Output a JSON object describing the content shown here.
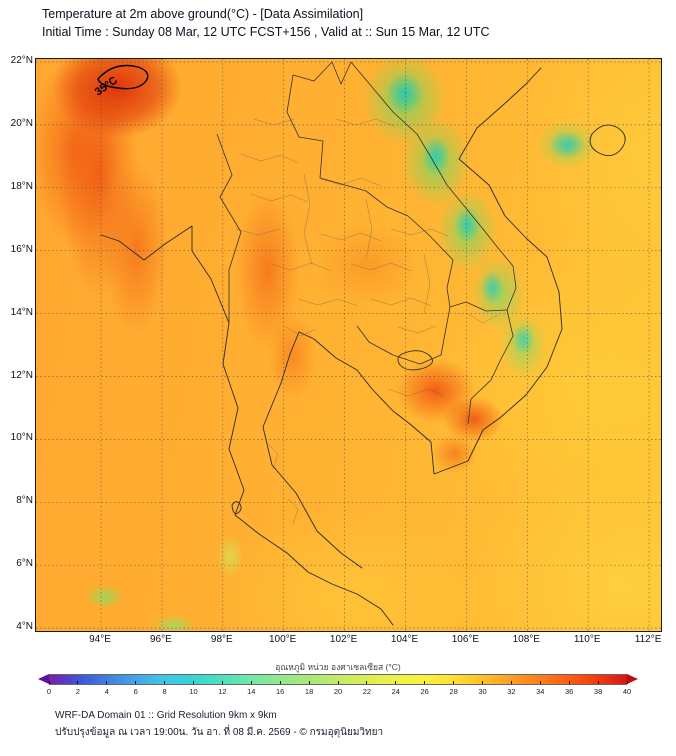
{
  "header": {
    "title_line1": "Temperature at 2m above ground(°C) - [Data Assimilation]",
    "title_line2": "Initial Time : Sunday 08 Mar, 12 UTC FCST+156 , Valid at :: Sun 15 Mar, 12 UTC"
  },
  "map": {
    "lat_labels": [
      "22°N",
      "20°N",
      "18°N",
      "16°N",
      "14°N",
      "12°N",
      "10°N",
      "8°N",
      "6°N",
      "4°N"
    ],
    "lon_labels": [
      "94°E",
      "96°E",
      "98°E",
      "100°E",
      "102°E",
      "104°E",
      "106°E",
      "108°E",
      "110°E",
      "112°E"
    ],
    "contour_label": "35°C"
  },
  "colorbar": {
    "label": "อุณหภูมิ หน่วย องศาเซลเซียส (°C)",
    "min": 0,
    "max": 40,
    "ticks": [
      "0",
      "2",
      "4",
      "6",
      "8",
      "10",
      "12",
      "14",
      "16",
      "18",
      "20",
      "22",
      "24",
      "26",
      "28",
      "30",
      "32",
      "34",
      "36",
      "38",
      "40"
    ],
    "gradient": [
      "#7a1fa2",
      "#3f51d9",
      "#3f7fe0",
      "#41a6e8",
      "#41c6e8",
      "#35d4d4",
      "#4fe0c0",
      "#71e8a8",
      "#93e88e",
      "#aae878",
      "#c4ea66",
      "#daee55",
      "#eef24a",
      "#fcf23c",
      "#ffdf32",
      "#ffc02a",
      "#ff9e22",
      "#ff7d1a",
      "#ff5c12",
      "#f23a0d",
      "#d91616"
    ],
    "left_arrow_color": "#5b10a8",
    "right_arrow_color": "#b80f0f"
  },
  "footer": {
    "line1": "WRF-DA Domain 01 :: Grid Resolution 9km x 9km",
    "line2": "ปรับปรุงข้อมูล ณ เวลา 19:00น. วัน อา. ที่ 08 มี.ค. 2569 - © กรมอุตุนิยมวิทยา"
  }
}
